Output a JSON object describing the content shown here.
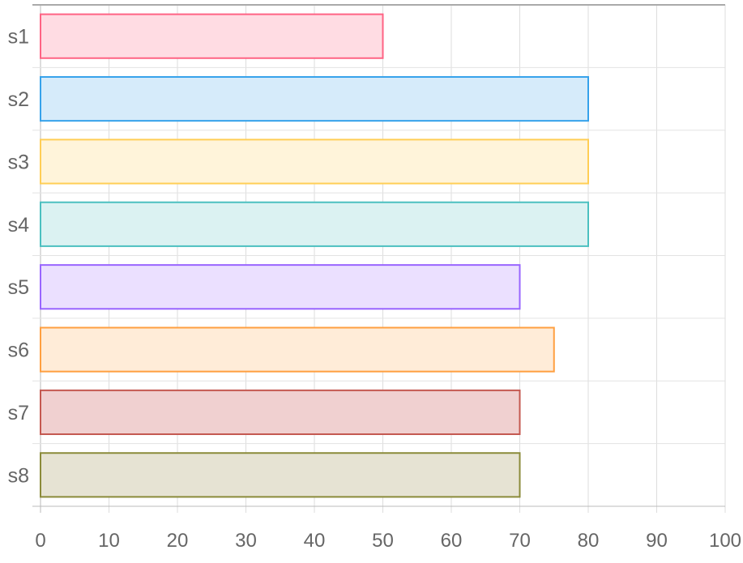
{
  "chart_data": {
    "type": "bar",
    "orientation": "horizontal",
    "categories": [
      "s1",
      "s2",
      "s3",
      "s4",
      "s5",
      "s6",
      "s7",
      "s8"
    ],
    "values": [
      50,
      80,
      80,
      80,
      70,
      75,
      70,
      70
    ],
    "xlim": [
      0,
      100
    ],
    "x_ticks": [
      0,
      10,
      20,
      30,
      40,
      50,
      60,
      70,
      80,
      90,
      100
    ],
    "grid": true,
    "legend": "none",
    "colors": [
      {
        "border": "#ff6384",
        "fill": "#ffdce3"
      },
      {
        "border": "#36a2eb",
        "fill": "#d6ebfa"
      },
      {
        "border": "#ffce56",
        "fill": "#fff4da"
      },
      {
        "border": "#4bc0c0",
        "fill": "#dbf2f2"
      },
      {
        "border": "#9966ff",
        "fill": "#ebe0ff"
      },
      {
        "border": "#ff9f40",
        "fill": "#ffecd8"
      },
      {
        "border": "#c45850",
        "fill": "#f0d0d0"
      },
      {
        "border": "#8b8b3a",
        "fill": "#e6e3d3"
      }
    ]
  }
}
